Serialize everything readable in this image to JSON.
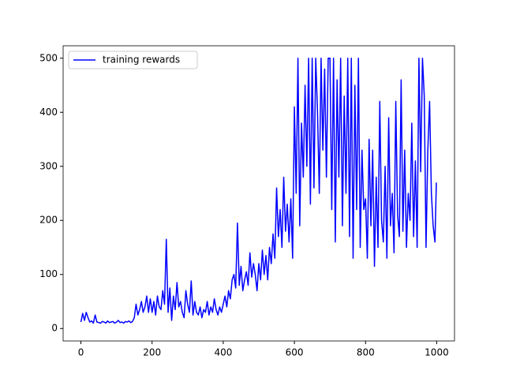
{
  "chart_data": {
    "type": "line",
    "x": [
      0,
      5,
      10,
      15,
      20,
      25,
      30,
      35,
      40,
      45,
      50,
      55,
      60,
      65,
      70,
      75,
      80,
      85,
      90,
      95,
      100,
      105,
      110,
      115,
      120,
      125,
      130,
      135,
      140,
      145,
      150,
      155,
      160,
      165,
      170,
      175,
      180,
      185,
      190,
      195,
      200,
      205,
      210,
      215,
      220,
      225,
      230,
      235,
      240,
      245,
      250,
      255,
      260,
      265,
      270,
      275,
      280,
      285,
      290,
      295,
      300,
      305,
      310,
      315,
      320,
      325,
      330,
      335,
      340,
      345,
      350,
      355,
      360,
      365,
      370,
      375,
      380,
      385,
      390,
      395,
      400,
      405,
      410,
      415,
      420,
      425,
      430,
      435,
      440,
      445,
      450,
      455,
      460,
      465,
      470,
      475,
      480,
      485,
      490,
      495,
      500,
      505,
      510,
      515,
      520,
      525,
      530,
      535,
      540,
      545,
      550,
      555,
      560,
      565,
      570,
      575,
      580,
      585,
      590,
      595,
      600,
      605,
      610,
      615,
      620,
      625,
      630,
      635,
      640,
      645,
      650,
      655,
      660,
      665,
      670,
      675,
      680,
      685,
      690,
      695,
      700,
      705,
      710,
      715,
      720,
      725,
      730,
      735,
      740,
      745,
      750,
      755,
      760,
      765,
      770,
      775,
      780,
      785,
      790,
      795,
      800,
      805,
      810,
      815,
      820,
      825,
      830,
      835,
      840,
      845,
      850,
      855,
      860,
      865,
      870,
      875,
      880,
      885,
      890,
      895,
      900,
      905,
      910,
      915,
      920,
      925,
      930,
      935,
      940,
      945,
      950,
      955,
      960,
      965,
      970,
      975,
      980,
      985,
      990,
      995,
      999
    ],
    "series": [
      {
        "name": "training rewards",
        "color": "#0000ff",
        "values": [
          12,
          28,
          15,
          30,
          20,
          12,
          14,
          10,
          25,
          12,
          11,
          10,
          13,
          12,
          10,
          14,
          11,
          12,
          13,
          10,
          12,
          15,
          11,
          12,
          10,
          13,
          12,
          14,
          11,
          13,
          20,
          45,
          25,
          35,
          50,
          30,
          40,
          60,
          30,
          55,
          30,
          50,
          25,
          60,
          40,
          35,
          70,
          45,
          165,
          30,
          75,
          15,
          60,
          35,
          85,
          40,
          50,
          30,
          20,
          70,
          45,
          30,
          88,
          25,
          50,
          30,
          25,
          40,
          20,
          35,
          30,
          50,
          25,
          40,
          30,
          55,
          35,
          25,
          40,
          30,
          45,
          60,
          40,
          70,
          55,
          90,
          100,
          75,
          195,
          80,
          115,
          70,
          90,
          105,
          80,
          140,
          95,
          120,
          100,
          70,
          120,
          90,
          145,
          100,
          135,
          90,
          150,
          120,
          175,
          130,
          260,
          170,
          220,
          150,
          280,
          180,
          230,
          160,
          240,
          130,
          410,
          250,
          500,
          190,
          380,
          280,
          450,
          300,
          500,
          230,
          500,
          260,
          500,
          400,
          250,
          500,
          330,
          480,
          280,
          500,
          500,
          220,
          500,
          160,
          460,
          280,
          500,
          190,
          430,
          250,
          500,
          170,
          500,
          130,
          450,
          220,
          500,
          150,
          330,
          220,
          240,
          130,
          350,
          190,
          330,
          115,
          280,
          150,
          420,
          200,
          160,
          300,
          130,
          390,
          190,
          250,
          140,
          420,
          210,
          170,
          460,
          180,
          330,
          150,
          250,
          200,
          380,
          170,
          310,
          150,
          500,
          290,
          500,
          430,
          150,
          330,
          420,
          250,
          190,
          160,
          270
        ]
      }
    ],
    "xlim": [
      -50,
      1050
    ],
    "ylim": [
      -23,
      523
    ],
    "xticks": [
      0,
      200,
      400,
      600,
      800,
      1000
    ],
    "yticks": [
      0,
      100,
      200,
      300,
      400,
      500
    ],
    "legend": "upper left"
  }
}
